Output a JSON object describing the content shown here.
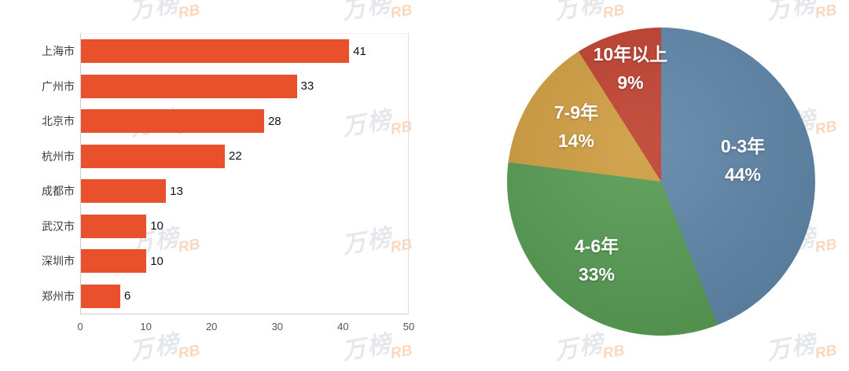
{
  "watermark": {
    "text": "万榜",
    "logo": "RB"
  },
  "chart_data": [
    {
      "type": "bar",
      "orientation": "horizontal",
      "title": "",
      "xlabel": "",
      "ylabel": "",
      "categories": [
        "上海市",
        "广州市",
        "北京市",
        "杭州市",
        "成都市",
        "武汉市",
        "深圳市",
        "郑州市"
      ],
      "values": [
        41,
        33,
        28,
        22,
        13,
        10,
        10,
        6
      ],
      "xlim": [
        0,
        50
      ],
      "x_ticks": [
        "0",
        "10",
        "20",
        "30",
        "40",
        "50"
      ],
      "bar_color": "#E8512B",
      "value_labels": true,
      "grid": false,
      "legend": "none"
    },
    {
      "type": "pie",
      "title": "",
      "labels": [
        "0-3年",
        "4-6年",
        "7-9年",
        "10年以上"
      ],
      "values": [
        44,
        33,
        14,
        9
      ],
      "display_values": [
        "44%",
        "33%",
        "14%",
        "9%"
      ],
      "colors": [
        "#5C83A6",
        "#53994F",
        "#CE9B3D",
        "#BE3D2C"
      ],
      "start_angle": "top",
      "direction": "clockwise",
      "label_position": "inside",
      "label_color": "#FFFFFF"
    }
  ]
}
